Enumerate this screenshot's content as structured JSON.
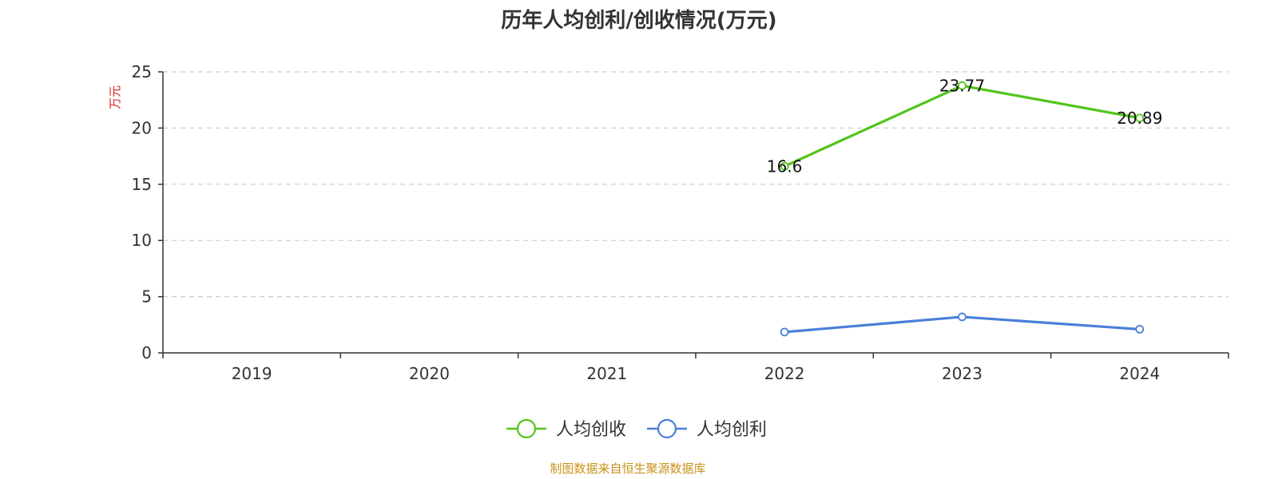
{
  "chart_data": {
    "type": "line",
    "title": "历年人均创利/创收情况(万元)",
    "ylabel": "万元",
    "xlabel": "",
    "categories": [
      "2019",
      "2020",
      "2021",
      "2022",
      "2023",
      "2024"
    ],
    "ylim": [
      0,
      25
    ],
    "yticks": [
      "0",
      "5",
      "10",
      "15",
      "20",
      "25"
    ],
    "grid": true,
    "legend_position": "bottom-center",
    "series": [
      {
        "name": "人均创收",
        "color": "#52c41a",
        "values": [
          null,
          null,
          null,
          16.6,
          23.77,
          20.89
        ],
        "labels": [
          "",
          "",
          "",
          "16.6",
          "23.77",
          "20.89"
        ]
      },
      {
        "name": "人均创利",
        "color": "#4a7fd8",
        "values": [
          null,
          null,
          null,
          1.85,
          3.2,
          2.1
        ],
        "labels": [
          "",
          "",
          "",
          "",
          "",
          ""
        ]
      }
    ],
    "source": "制图数据来自恒生聚源数据库"
  }
}
